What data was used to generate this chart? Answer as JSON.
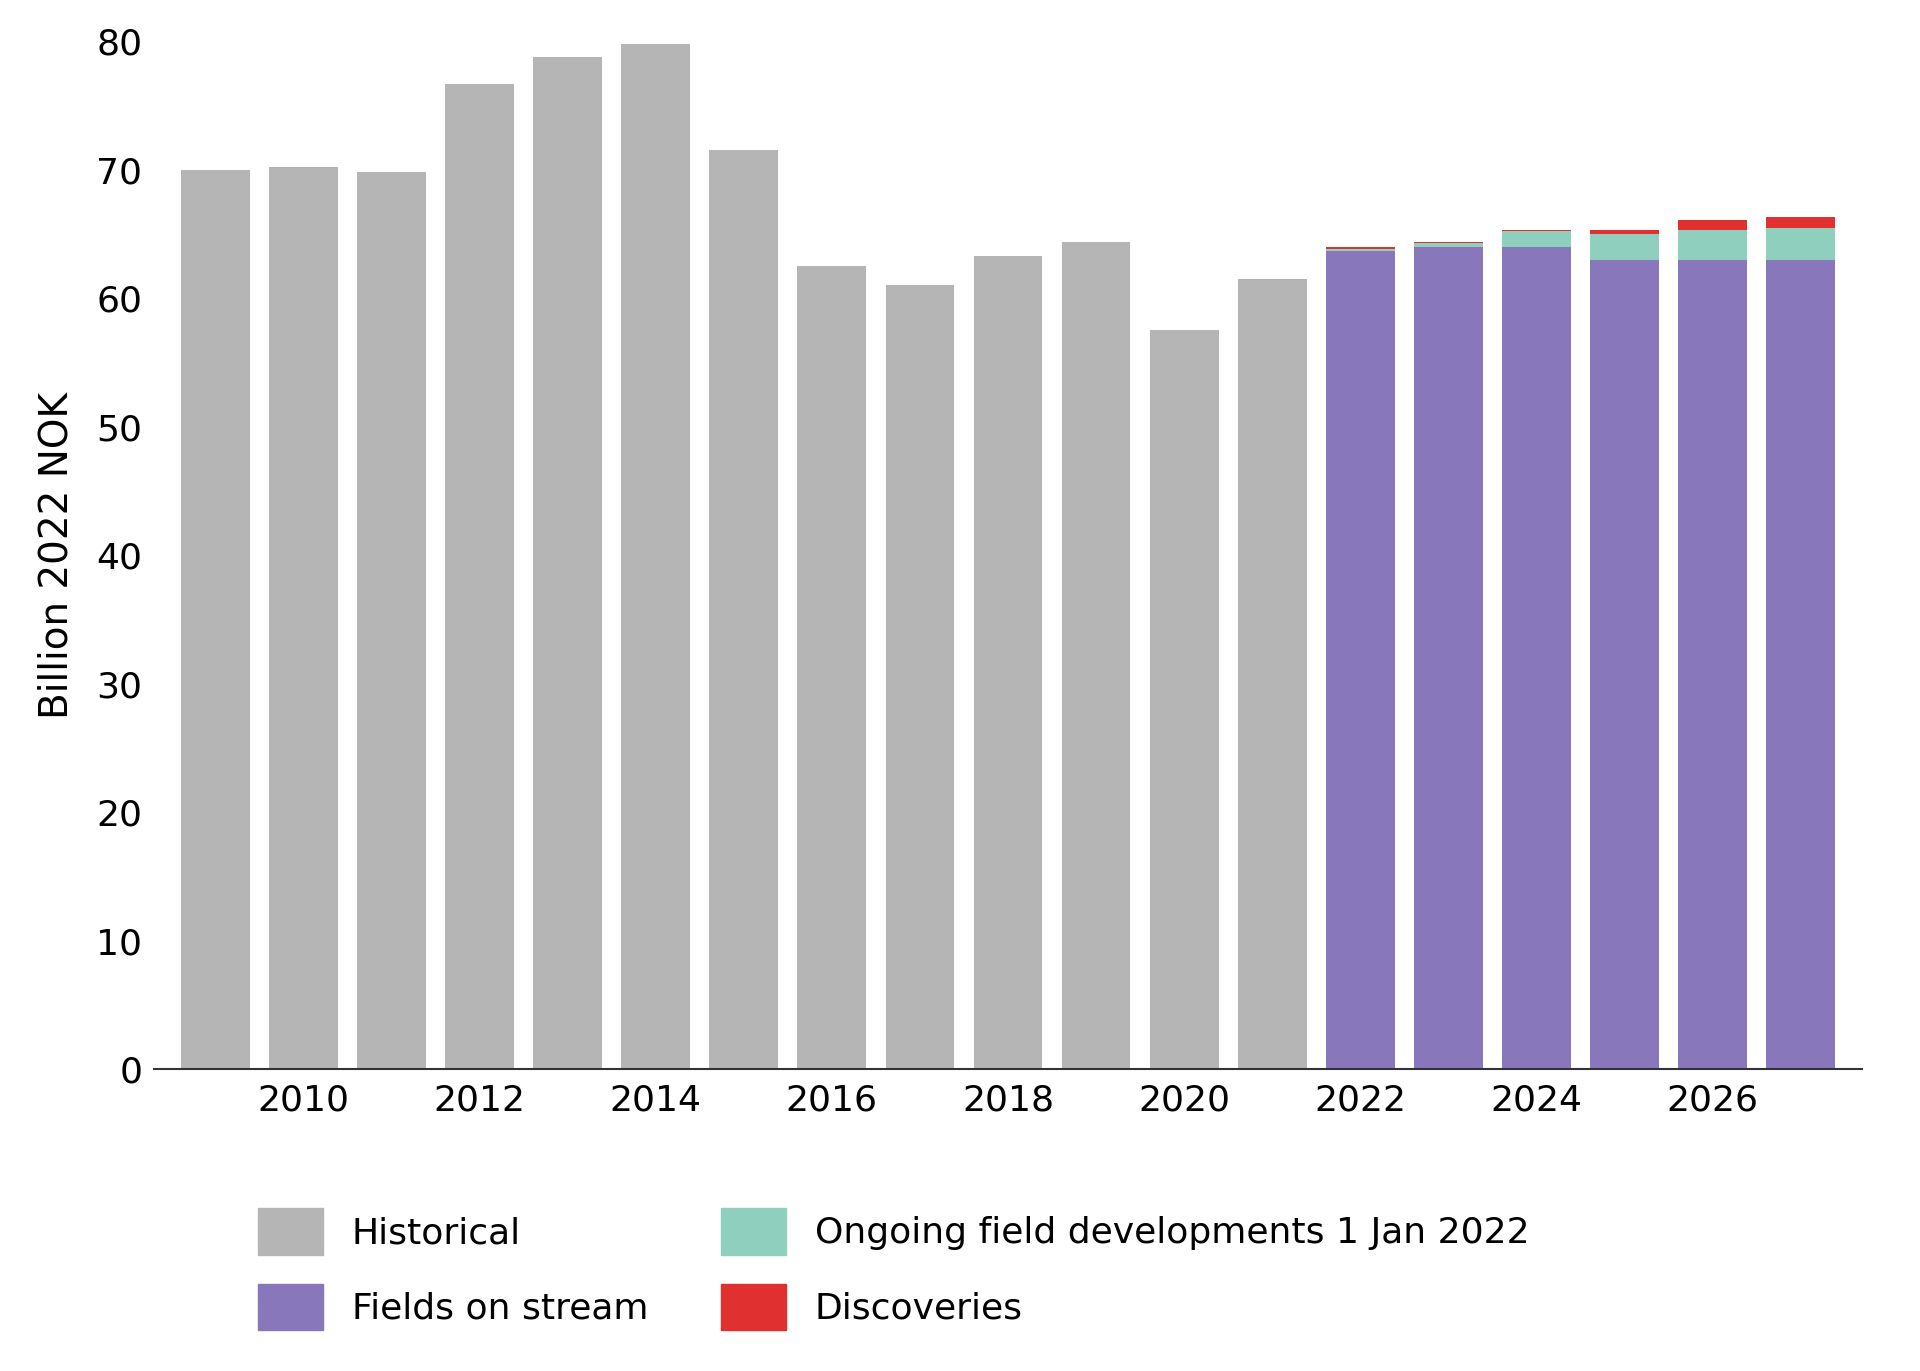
{
  "years": [
    2009,
    2010,
    2011,
    2012,
    2013,
    2014,
    2015,
    2016,
    2017,
    2018,
    2019,
    2020,
    2021,
    2022,
    2023,
    2024,
    2025,
    2026,
    2027
  ],
  "historical": [
    70.0,
    70.2,
    69.8,
    76.7,
    78.8,
    79.8,
    71.5,
    62.5,
    61.0,
    63.3,
    64.4,
    57.5,
    61.5,
    0,
    0,
    0,
    0,
    0,
    0
  ],
  "fields_on_stream": [
    0,
    0,
    0,
    0,
    0,
    0,
    0,
    0,
    0,
    0,
    0,
    0,
    0,
    63.7,
    64.0,
    64.0,
    63.0,
    63.0,
    63.0
  ],
  "ongoing_dev": [
    0,
    0,
    0,
    0,
    0,
    0,
    0,
    0,
    0,
    0,
    0,
    0,
    0,
    0.15,
    0.3,
    1.2,
    2.0,
    2.3,
    2.5
  ],
  "discoveries": [
    0,
    0,
    0,
    0,
    0,
    0,
    0,
    0,
    0,
    0,
    0,
    0,
    0,
    0.15,
    0.1,
    0.1,
    0.3,
    0.8,
    0.8
  ],
  "color_historical": "#b5b5b5",
  "color_fields": "#8878bb",
  "color_ongoing": "#8ecfbe",
  "color_discoveries": "#e03030",
  "ylabel": "Billion 2022 NOK",
  "ylim": [
    0,
    80
  ],
  "yticks": [
    0,
    10,
    20,
    30,
    40,
    50,
    60,
    70,
    80
  ],
  "legend_historical": "Historical",
  "legend_fields": "Fields on stream",
  "legend_ongoing": "Ongoing field developments 1 Jan 2022",
  "legend_discoveries": "Discoveries",
  "background_color": "#ffffff",
  "bar_width": 0.78,
  "xtick_years": [
    2010,
    2012,
    2014,
    2016,
    2018,
    2020,
    2022,
    2024,
    2026
  ],
  "xlim_left": 2008.3,
  "xlim_right": 2027.7
}
